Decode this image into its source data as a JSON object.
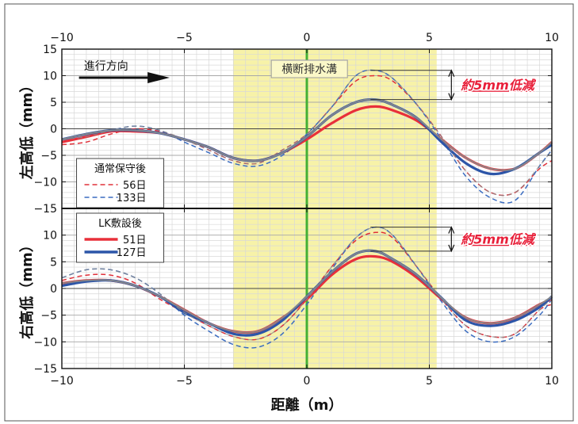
{
  "chart_data": [
    {
      "type": "line",
      "panel": "top",
      "ylabel": "左高低（mm）",
      "xlim": [
        -10,
        10
      ],
      "ylim": [
        -15,
        15
      ],
      "x_ticks": [
        "−10",
        "−5",
        "0",
        "5",
        "10"
      ],
      "y_ticks": [
        "15",
        "10",
        "5",
        "0",
        "−5",
        "−10",
        "−15"
      ],
      "grid": true,
      "highlight_region": {
        "x": [
          -3,
          5.3
        ],
        "color": "#f7f2a8",
        "label": "横断排水溝"
      },
      "center_line": {
        "x": 0,
        "color": "#44b035"
      },
      "direction_label": "進行方向",
      "annotation": {
        "text": "約5mm低減",
        "color": "#e8203a"
      },
      "legend_groups": [
        {
          "title": "通常保守後",
          "position": "left-middle",
          "entries": [
            "56日",
            "133日"
          ]
        }
      ],
      "series": [
        {
          "name": "56日",
          "group": "通常保守後",
          "style": "dashed",
          "color": "#e0303a",
          "x": [
            -10,
            -9,
            -8,
            -7,
            -6,
            -5,
            -4,
            -3,
            -2,
            -1,
            0,
            1,
            2,
            2.8,
            3.5,
            4.5,
            5.5,
            6.5,
            7.5,
            8.5,
            9.5,
            10
          ],
          "y": [
            -3,
            -2.5,
            -1,
            0,
            -0.5,
            -2,
            -4,
            -6,
            -6.5,
            -4,
            -1,
            4,
            9,
            10,
            9,
            4.5,
            -1.5,
            -8,
            -12,
            -12,
            -7.5,
            -6
          ]
        },
        {
          "name": "133日",
          "group": "通常保守後",
          "style": "dashed",
          "color": "#3a6cc0",
          "x": [
            -10,
            -9,
            -8,
            -7,
            -6,
            -5,
            -4,
            -3,
            -2,
            -1,
            0,
            1,
            2,
            2.8,
            3.5,
            4.5,
            5.5,
            6.5,
            7.5,
            8.5,
            9.5,
            10
          ],
          "y": [
            -2,
            -1.5,
            -0.3,
            0.5,
            -0.3,
            -2.5,
            -4.5,
            -6.5,
            -7,
            -5,
            -1,
            4,
            10,
            11,
            9.5,
            4.5,
            -2,
            -9,
            -13,
            -13.5,
            -7,
            -4
          ]
        },
        {
          "name": "51日",
          "group": "LK敷設後",
          "style": "solid",
          "color": "#e8303a",
          "x": [
            -10,
            -9,
            -8,
            -7,
            -6,
            -5,
            -4,
            -3,
            -2,
            -1,
            0,
            1,
            2,
            2.8,
            3.5,
            4.5,
            5.5,
            6.5,
            7.5,
            8.5,
            9.5,
            10
          ],
          "y": [
            -2.5,
            -1.5,
            -0.5,
            -0.5,
            -0.8,
            -2,
            -3.5,
            -5.5,
            -6,
            -4.5,
            -2,
            1,
            3.5,
            4.2,
            3.5,
            1.5,
            -2,
            -5.5,
            -7.5,
            -7.5,
            -4.5,
            -2.5
          ]
        },
        {
          "name": "127日",
          "group": "LK敷設後",
          "style": "solid",
          "color": "#2c55a8",
          "x": [
            -10,
            -9,
            -8,
            -7,
            -6,
            -5,
            -4,
            -3,
            -2,
            -1,
            0,
            1,
            2,
            2.8,
            3.5,
            4.5,
            5.5,
            6.5,
            7.5,
            8.5,
            9.5,
            10
          ],
          "y": [
            -2,
            -1,
            -0.3,
            -0.3,
            -0.8,
            -2,
            -3.5,
            -5.5,
            -6,
            -4.5,
            -1.5,
            2.5,
            5,
            5.5,
            4.5,
            2,
            -2.5,
            -6.5,
            -8.5,
            -7.5,
            -4.5,
            -3
          ]
        }
      ]
    },
    {
      "type": "line",
      "panel": "bottom",
      "ylabel": "右高低（mm）",
      "xlabel": "距離（m）",
      "xlim": [
        -10,
        10
      ],
      "ylim": [
        -15,
        15
      ],
      "x_ticks": [
        "−10",
        "−5",
        "0",
        "5",
        "10"
      ],
      "y_ticks": [
        "10",
        "5",
        "0",
        "−5",
        "−10",
        "−15"
      ],
      "grid": true,
      "highlight_region": {
        "x": [
          -3,
          5.3
        ],
        "color": "#f7f2a8"
      },
      "center_line": {
        "x": 0,
        "color": "#44b035"
      },
      "annotation": {
        "text": "約5mm低減",
        "color": "#e8203a"
      },
      "legend_groups": [
        {
          "title": "LK敷設後",
          "position": "top-left",
          "entries": [
            "51日",
            "127日"
          ]
        }
      ],
      "series": [
        {
          "name": "56日",
          "group": "通常保守後",
          "style": "dashed",
          "color": "#e0303a",
          "x": [
            -10,
            -9,
            -8,
            -7,
            -6,
            -5,
            -4,
            -3,
            -2,
            -1,
            0,
            1,
            2,
            2.8,
            3.5,
            4.5,
            5.5,
            6.5,
            7.5,
            8.5,
            9.5,
            10
          ],
          "y": [
            1.5,
            2.5,
            2.5,
            1,
            -2,
            -4.5,
            -7,
            -9,
            -9.5,
            -7,
            -2,
            4,
            9,
            10.5,
            9.5,
            4,
            -2,
            -7,
            -9,
            -8.5,
            -4,
            -3
          ]
        },
        {
          "name": "133日",
          "group": "通常保守後",
          "style": "dashed",
          "color": "#3a6cc0",
          "x": [
            -10,
            -9,
            -8,
            -7,
            -6,
            -5,
            -4,
            -3,
            -2,
            -1,
            0,
            1,
            2,
            2.8,
            3.5,
            4.5,
            5.5,
            6.5,
            7.5,
            8.5,
            9.5,
            10
          ],
          "y": [
            2,
            3.5,
            3.5,
            2,
            -1,
            -5,
            -8,
            -10.5,
            -11,
            -8.5,
            -3,
            3.5,
            9.5,
            11.5,
            10,
            4,
            -2.5,
            -8,
            -10,
            -9,
            -5,
            -2
          ]
        },
        {
          "name": "51日",
          "group": "LK敷設後",
          "style": "solid",
          "color": "#e8303a",
          "x": [
            -10,
            -9,
            -8,
            -7,
            -6,
            -5,
            -4,
            -3,
            -2,
            -1,
            0,
            1,
            2,
            2.8,
            3.5,
            4.5,
            5.5,
            6.5,
            7.5,
            8.5,
            9.5,
            10
          ],
          "y": [
            1,
            1.5,
            1.5,
            0.5,
            -1.5,
            -4,
            -6.5,
            -8,
            -8,
            -5.5,
            -2,
            2.5,
            5.5,
            6,
            5,
            2,
            -2,
            -5.5,
            -6.5,
            -5.5,
            -3,
            -2
          ]
        },
        {
          "name": "127日",
          "group": "LK敷設後",
          "style": "solid",
          "color": "#2c55a8",
          "x": [
            -10,
            -9,
            -8,
            -7,
            -6,
            -5,
            -4,
            -3,
            -2,
            -1,
            0,
            1,
            2,
            2.8,
            3.5,
            4.5,
            5.5,
            6.5,
            7.5,
            8.5,
            9.5,
            10
          ],
          "y": [
            0.5,
            1.3,
            1.5,
            0.5,
            -1.5,
            -4.5,
            -6.5,
            -8.5,
            -8.5,
            -6,
            -1.5,
            3,
            6.5,
            7,
            5.5,
            2.5,
            -1.8,
            -6,
            -7,
            -6,
            -3.5,
            -1.5
          ]
        }
      ]
    }
  ]
}
